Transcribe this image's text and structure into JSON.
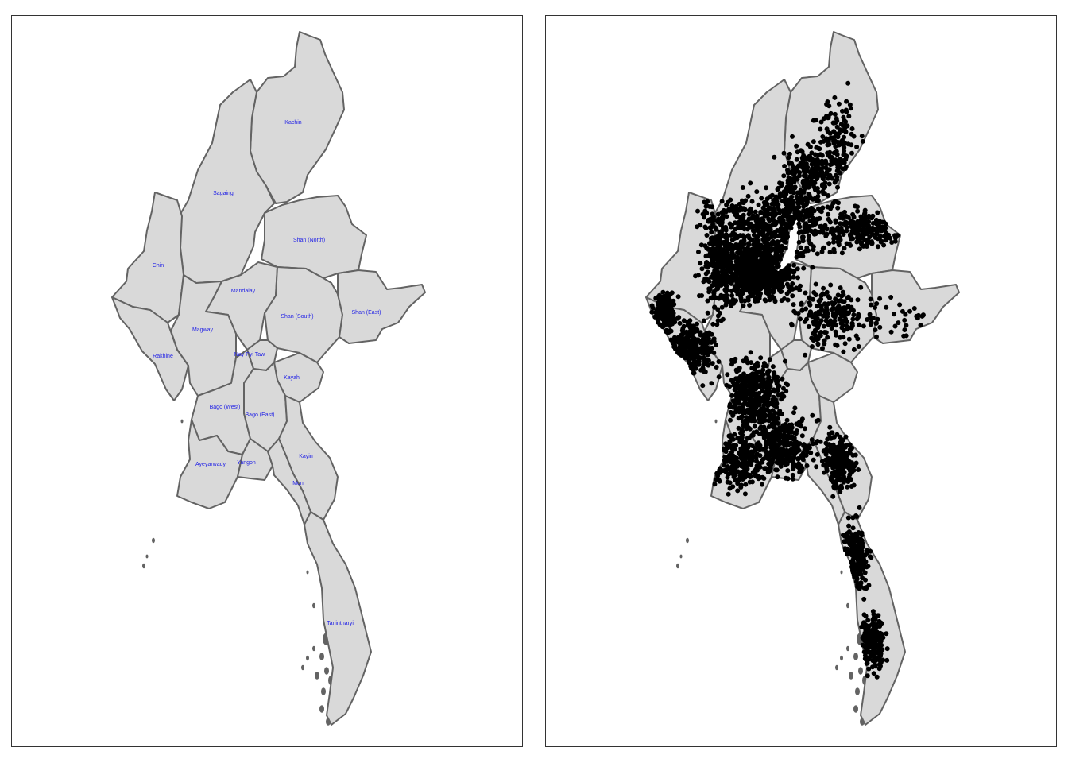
{
  "panels": {
    "left": {
      "map_type": "choropleth-with-labels"
    },
    "right": {
      "map_type": "point-overlay",
      "point_color": "#000000"
    }
  },
  "colors": {
    "region_fill": "#d9d9d9",
    "region_stroke": "#636363",
    "label_text": "#1f1fe6",
    "frame": "#333333",
    "points": "#000000"
  },
  "regions": [
    {
      "key": "kachin",
      "label": "Kachin"
    },
    {
      "key": "sagaing",
      "label": "Sagaing"
    },
    {
      "key": "shan-north",
      "label": "Shan (North)"
    },
    {
      "key": "chin",
      "label": "Chin"
    },
    {
      "key": "mandalay",
      "label": "Mandalay"
    },
    {
      "key": "shan-south",
      "label": "Shan (South)"
    },
    {
      "key": "shan-east",
      "label": "Shan (East)"
    },
    {
      "key": "magway",
      "label": "Magway"
    },
    {
      "key": "rakhine",
      "label": "Rakhine"
    },
    {
      "key": "nay-pyi-taw",
      "label": "Nay Pyi Taw"
    },
    {
      "key": "kayah",
      "label": "Kayah"
    },
    {
      "key": "bago-west",
      "label": "Bago (West)"
    },
    {
      "key": "bago-east",
      "label": "Bago (East)"
    },
    {
      "key": "ayeyarwady",
      "label": "Ayeyarwady"
    },
    {
      "key": "yangon",
      "label": "Yangon"
    },
    {
      "key": "kayin",
      "label": "Kayin"
    },
    {
      "key": "mon",
      "label": "Mon"
    },
    {
      "key": "tanintharyi",
      "label": "Tanintharyi"
    }
  ]
}
